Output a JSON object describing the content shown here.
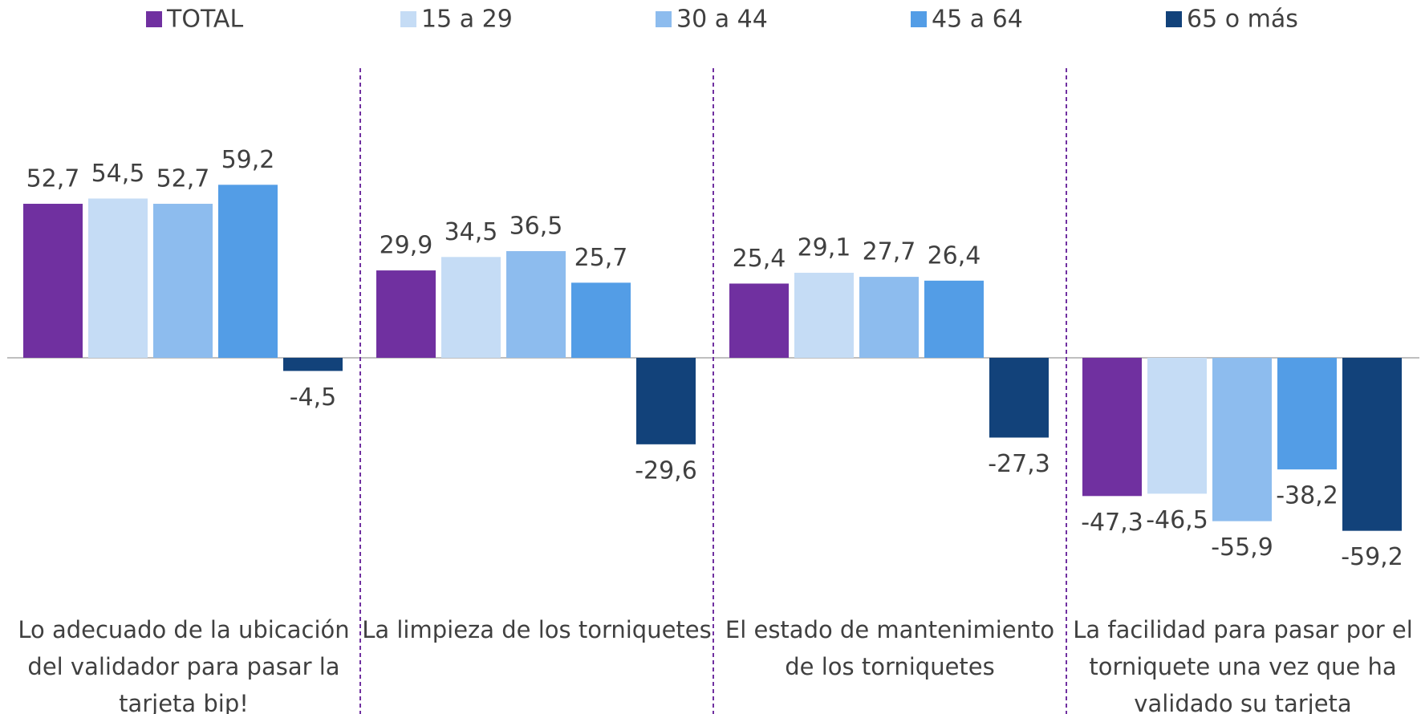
{
  "chart_data": {
    "type": "bar",
    "categories": [
      "Lo adecuado de la ubicación del validador para pasar la tarjeta bip!",
      "La limpieza de los torniquetes",
      "El estado de mantenimiento de los torniquetes",
      "La facilidad para pasar por el torniquete una vez que ha validado su tarjeta"
    ],
    "series": [
      {
        "name": "TOTAL",
        "color": "#7030a0",
        "values": [
          52.7,
          29.9,
          25.4,
          -47.3
        ],
        "value_labels": [
          "52,7",
          "29,9",
          "25,4",
          "-47,3"
        ]
      },
      {
        "name": "15 a 29",
        "color": "#c5dcf5",
        "values": [
          54.5,
          34.5,
          29.1,
          -46.5
        ],
        "value_labels": [
          "54,5",
          "34,5",
          "29,1",
          "-46,5"
        ]
      },
      {
        "name": "30 a 44",
        "color": "#8dbcee",
        "values": [
          52.7,
          36.5,
          27.7,
          -55.9
        ],
        "value_labels": [
          "52,7",
          "36,5",
          "27,7",
          "-55,9"
        ]
      },
      {
        "name": "45 a 64",
        "color": "#539de6",
        "values": [
          59.2,
          25.7,
          26.4,
          -38.2
        ],
        "value_labels": [
          "59,2",
          "25,7",
          "26,4",
          "-38,2"
        ]
      },
      {
        "name": "65 o más",
        "color": "#12427a",
        "values": [
          -4.5,
          -29.6,
          -27.3,
          -59.2
        ],
        "value_labels": [
          "-4,5",
          "-29,6",
          "-27,3",
          "-59,2"
        ]
      }
    ],
    "ylim": [
      -70,
      70
    ],
    "legend": "top"
  }
}
